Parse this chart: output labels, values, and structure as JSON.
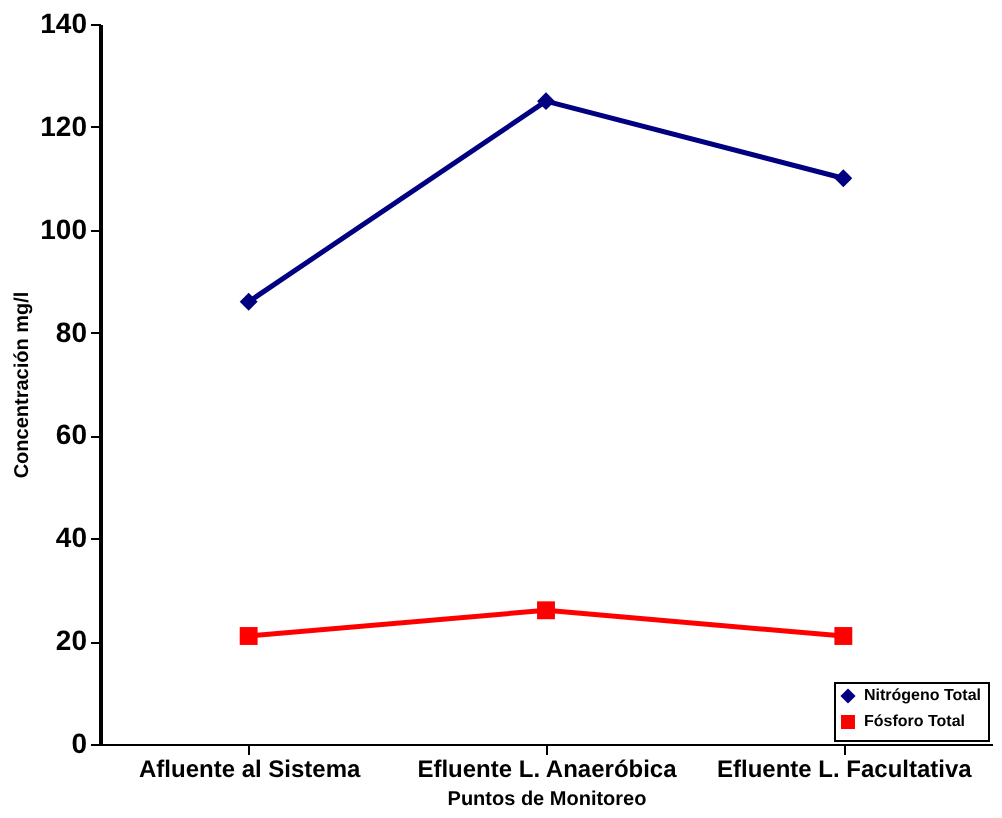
{
  "chart_data": {
    "type": "line",
    "xlabel": "Puntos de Monitoreo",
    "ylabel": "Concentración mg/l",
    "categories": [
      "Afluente al Sistema",
      "Efluente L. Anaeróbica",
      "Efluente L. Facultativa"
    ],
    "series": [
      {
        "name": "Nitrógeno Total",
        "color": "#000080",
        "marker": "diamond",
        "values": [
          86,
          125,
          110
        ]
      },
      {
        "name": "Fósforo Total",
        "color": "#ff0000",
        "marker": "square",
        "values": [
          21,
          26,
          21
        ]
      }
    ],
    "ylim": [
      0,
      140
    ],
    "yticks": [
      0,
      20,
      40,
      60,
      80,
      100,
      120,
      140
    ],
    "grid": false,
    "legend": "bottom right",
    "line_style": "solid"
  }
}
